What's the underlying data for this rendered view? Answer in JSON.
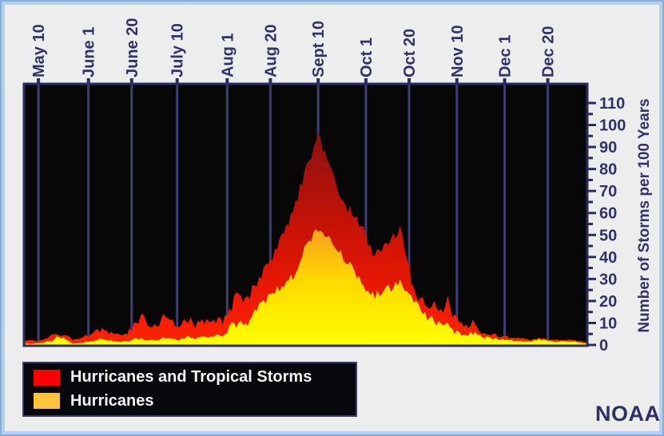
{
  "branding": {
    "label": "NOAA"
  },
  "chart_data": {
    "type": "area",
    "title": "",
    "ylabel": "Number of Storms per 100 Years",
    "ylim": [
      0,
      117
    ],
    "y_ticks": [
      0,
      10,
      20,
      30,
      40,
      50,
      60,
      70,
      80,
      90,
      100,
      110
    ],
    "y_minor_tick_step": 5,
    "x_day0_date": "May 4",
    "x_domain_days": [
      0,
      247
    ],
    "grid": "vertical-only",
    "legend_position": "bottom-left",
    "x_ticks": [
      {
        "label": "May 10",
        "day": 6
      },
      {
        "label": "June 1",
        "day": 28
      },
      {
        "label": "June 20",
        "day": 47
      },
      {
        "label": "July 10",
        "day": 67
      },
      {
        "label": "Aug 1",
        "day": 89
      },
      {
        "label": "Aug 20",
        "day": 108
      },
      {
        "label": "Sept 10",
        "day": 129
      },
      {
        "label": "Oct 1",
        "day": 150
      },
      {
        "label": "Oct 20",
        "day": 169
      },
      {
        "label": "Nov 10",
        "day": 190
      },
      {
        "label": "Dec 1",
        "day": 211
      },
      {
        "label": "Dec 20",
        "day": 230
      }
    ],
    "series": [
      {
        "name": "Hurricanes and Tropical Storms",
        "legend_color": "#fb0101",
        "days": [
          0,
          4,
          8,
          12,
          15,
          18,
          21,
          25,
          29,
          33,
          35,
          37,
          41,
          45,
          48,
          51,
          54,
          58,
          61,
          65,
          68,
          72,
          75,
          79,
          83,
          87,
          90,
          93,
          96,
          99,
          102,
          105,
          108,
          111,
          114,
          117,
          120,
          123,
          126,
          129,
          132,
          135,
          138,
          141,
          144,
          147,
          150,
          153,
          156,
          159,
          162,
          165,
          168,
          171,
          174,
          177,
          180,
          183,
          186,
          189,
          193,
          197,
          201,
          205,
          209,
          213,
          217,
          221,
          225,
          229,
          233,
          237,
          241,
          245,
          247
        ],
        "values": [
          2,
          2,
          2.5,
          4,
          5,
          4,
          2.5,
          3,
          5,
          6.5,
          7.5,
          6,
          4.5,
          5.5,
          9,
          14,
          9,
          8,
          12,
          10,
          9,
          12.5,
          9,
          11,
          12.5,
          11,
          15,
          23,
          20,
          23,
          29,
          33,
          37,
          45,
          50,
          60,
          67,
          78,
          87,
          95,
          88,
          79,
          70,
          63,
          60,
          56,
          49,
          41,
          44,
          46,
          49,
          52,
          40,
          25,
          21,
          19,
          18,
          15,
          21,
          12,
          8,
          10,
          6,
          5,
          4,
          3.5,
          3,
          2.5,
          3,
          3,
          2,
          2.5,
          2,
          1.5,
          1.5
        ]
      },
      {
        "name": "Hurricanes",
        "legend_color": "#fbc33b",
        "days": [
          0,
          4,
          8,
          12,
          15,
          18,
          21,
          25,
          29,
          33,
          35,
          37,
          41,
          45,
          48,
          51,
          54,
          58,
          61,
          65,
          68,
          72,
          75,
          79,
          83,
          87,
          90,
          93,
          96,
          99,
          102,
          105,
          108,
          111,
          114,
          117,
          120,
          123,
          126,
          129,
          132,
          135,
          138,
          141,
          144,
          147,
          150,
          153,
          156,
          159,
          162,
          165,
          168,
          171,
          174,
          177,
          180,
          183,
          186,
          189,
          193,
          197,
          201,
          205,
          209,
          213,
          217,
          221,
          225,
          229,
          233,
          237,
          241,
          245,
          247
        ],
        "values": [
          0.5,
          0.5,
          1,
          2,
          4,
          3,
          0.5,
          1,
          1.5,
          2.5,
          3,
          2,
          1.5,
          2,
          2.5,
          3,
          2,
          2,
          3,
          2.5,
          2.5,
          4,
          3,
          3.5,
          4.5,
          4,
          8,
          9,
          10,
          11,
          17,
          19,
          22,
          25,
          27,
          30,
          33,
          45,
          49,
          52,
          51,
          48,
          44,
          38,
          35,
          31,
          26,
          22,
          24,
          25,
          27,
          28,
          24,
          19,
          16,
          13,
          11,
          8.5,
          9,
          6,
          4.5,
          5.5,
          3.5,
          3,
          2.5,
          2,
          2,
          1.5,
          2.5,
          2.5,
          1.5,
          2,
          1.5,
          1,
          1
        ]
      }
    ],
    "colors": {
      "plot_background": "#070707",
      "gridline": "#3e3e74",
      "axis": "#2b2b5e",
      "tick_label": "#31316b",
      "storms_fill_stops": [
        {
          "offset": 0,
          "color": "#6d0808"
        },
        {
          "offset": 0.2,
          "color": "#8e1111"
        },
        {
          "offset": 0.5,
          "color": "#c01208"
        },
        {
          "offset": 0.78,
          "color": "#ea1703"
        },
        {
          "offset": 1,
          "color": "#ff2400"
        }
      ],
      "hurricanes_fill_stops": [
        {
          "offset": 0.35,
          "color": "#ed7d00"
        },
        {
          "offset": 0.55,
          "color": "#f7a01e"
        },
        {
          "offset": 0.75,
          "color": "#ffd800"
        },
        {
          "offset": 1,
          "color": "#ffff00"
        }
      ]
    }
  }
}
